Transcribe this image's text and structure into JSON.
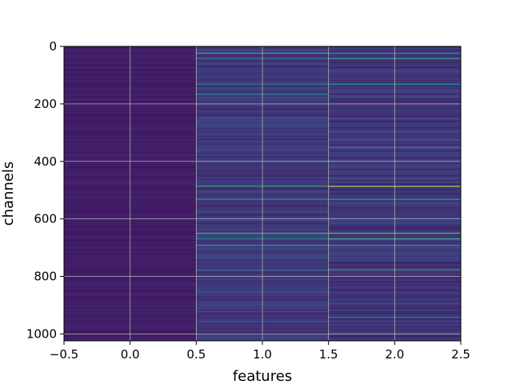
{
  "chart_data": {
    "type": "heatmap",
    "title": "",
    "xlabel": "features",
    "ylabel": "channels",
    "xlim": [
      -0.5,
      2.5
    ],
    "ylim": [
      1024,
      0
    ],
    "y_inverted": true,
    "colormap": "viridis",
    "grid": true,
    "x_ticks": [
      {
        "value": -0.5,
        "label": "−0.5"
      },
      {
        "value": 0.0,
        "label": "0.0"
      },
      {
        "value": 0.5,
        "label": "0.5"
      },
      {
        "value": 1.0,
        "label": "1.0"
      },
      {
        "value": 1.5,
        "label": "1.5"
      },
      {
        "value": 2.0,
        "label": "2.0"
      },
      {
        "value": 2.5,
        "label": "2.5"
      }
    ],
    "y_ticks": [
      {
        "value": 0,
        "label": "0"
      },
      {
        "value": 200,
        "label": "200"
      },
      {
        "value": 400,
        "label": "400"
      },
      {
        "value": 600,
        "label": "600"
      },
      {
        "value": 800,
        "label": "800"
      },
      {
        "value": 1000,
        "label": "1000"
      }
    ],
    "columns": [
      {
        "feature": 0,
        "base_level": 0.06,
        "variation": 0.05
      },
      {
        "feature": 1,
        "base_level": 0.12,
        "variation": 0.1
      },
      {
        "feature": 2,
        "base_level": 0.1,
        "variation": 0.12
      }
    ],
    "highlight_rows": [
      {
        "feature": 1,
        "channel": 22,
        "level": 0.62
      },
      {
        "feature": 1,
        "channel": 40,
        "level": 0.45
      },
      {
        "feature": 1,
        "channel": 130,
        "level": 0.4
      },
      {
        "feature": 1,
        "channel": 165,
        "level": 0.45
      },
      {
        "feature": 1,
        "channel": 485,
        "level": 0.6
      },
      {
        "feature": 1,
        "channel": 530,
        "level": 0.55
      },
      {
        "feature": 1,
        "channel": 648,
        "level": 0.65
      },
      {
        "feature": 1,
        "channel": 668,
        "level": 0.5
      },
      {
        "feature": 1,
        "channel": 690,
        "level": 0.52
      },
      {
        "feature": 1,
        "channel": 775,
        "level": 0.45
      },
      {
        "feature": 2,
        "channel": 22,
        "level": 0.45
      },
      {
        "feature": 2,
        "channel": 40,
        "level": 0.6
      },
      {
        "feature": 2,
        "channel": 130,
        "level": 0.5
      },
      {
        "feature": 2,
        "channel": 350,
        "level": 0.4
      },
      {
        "feature": 2,
        "channel": 485,
        "level": 0.85
      },
      {
        "feature": 2,
        "channel": 530,
        "level": 0.55
      },
      {
        "feature": 2,
        "channel": 648,
        "level": 0.7
      },
      {
        "feature": 2,
        "channel": 668,
        "level": 0.62
      },
      {
        "feature": 2,
        "channel": 690,
        "level": 0.6
      },
      {
        "feature": 2,
        "channel": 775,
        "level": 0.6
      },
      {
        "feature": 2,
        "channel": 940,
        "level": 0.45
      }
    ]
  }
}
